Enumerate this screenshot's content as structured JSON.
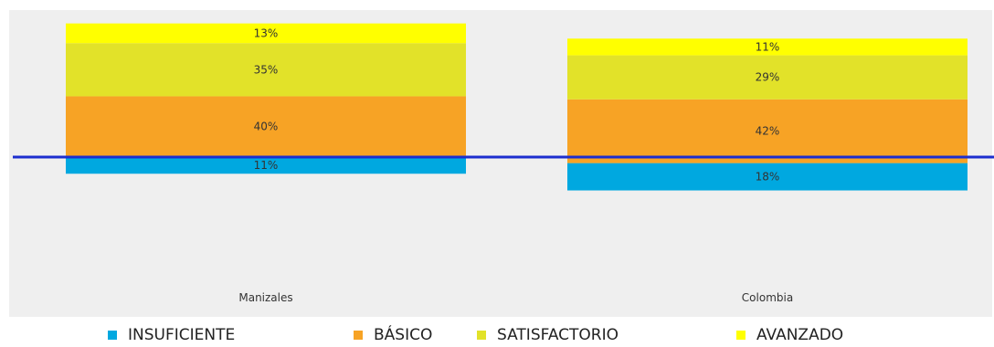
{
  "chart_data": {
    "type": "bar",
    "stacked": true,
    "categories": [
      "Manizales",
      "Colombia"
    ],
    "series": [
      {
        "name": "INSUFICIENTE",
        "values": [
          11,
          18
        ],
        "labels": [
          "11%",
          "18%"
        ],
        "color": "#00a8e0"
      },
      {
        "name": "BÁSICO",
        "values": [
          40,
          42
        ],
        "labels": [
          "40%",
          "42%"
        ],
        "color": "#f7a325"
      },
      {
        "name": "SATISFACTORIO",
        "values": [
          35,
          29
        ],
        "labels": [
          "35%",
          "29%"
        ],
        "color": "#e2e229"
      },
      {
        "name": "AVANZADO",
        "values": [
          13,
          11
        ],
        "labels": [
          "13%",
          "11%"
        ],
        "color": "#ffff00"
      }
    ],
    "baseline_offset": [
      0,
      11
    ],
    "reference_line": {
      "value": 11,
      "color": "#1c2ecf"
    },
    "ylim": [
      -60,
      100
    ],
    "grid": false,
    "legend_position": "bottom",
    "plot_background": "#efefef"
  }
}
